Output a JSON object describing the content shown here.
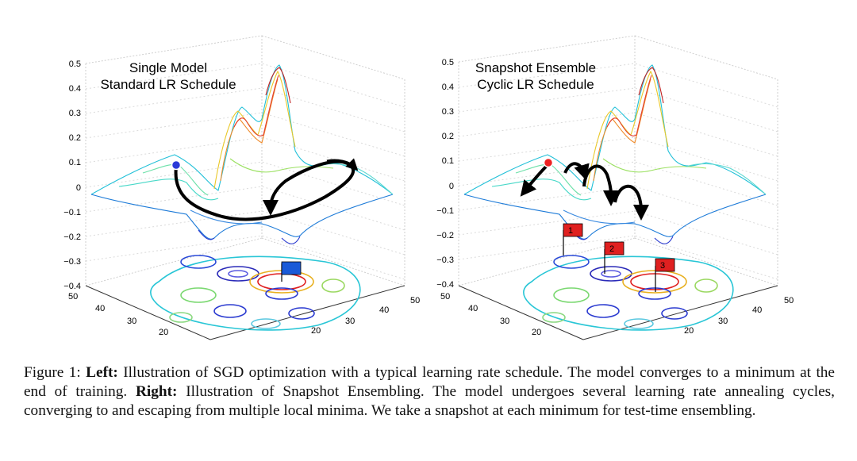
{
  "figure": {
    "panels": [
      {
        "title_line1": "Single Model",
        "title_line2": "Standard LR Schedule",
        "z_ticks": [
          "0.5",
          "0.4",
          "0.3",
          "0.2",
          "0.1",
          "0",
          "−0.1",
          "−0.2",
          "−0.3",
          "−0.4"
        ],
        "y_ticks": [
          "50",
          "40",
          "30",
          "20"
        ],
        "x_ticks": [
          "50",
          "40",
          "30",
          "20"
        ]
      },
      {
        "title_line1": "Snapshot Ensemble",
        "title_line2": "Cyclic LR Schedule",
        "z_ticks": [
          "0.5",
          "0.4",
          "0.3",
          "0.2",
          "0.1",
          "0",
          "−0.1",
          "−0.2",
          "−0.3",
          "−0.4"
        ],
        "y_ticks": [
          "50",
          "40",
          "30",
          "20"
        ],
        "x_ticks": [
          "50",
          "40",
          "30",
          "20"
        ],
        "flags": [
          "1",
          "2",
          "3"
        ]
      }
    ]
  },
  "caption": {
    "label": "Figure 1:",
    "left_label": "Left:",
    "left_text": "Illustration of SGD optimization with a typical learning rate schedule. The model converges to a minimum at the end of training.",
    "right_label": "Right:",
    "right_text": "Illustration of Snapshot Ensembling. The model undergoes several learning rate annealing cycles, converging to and escaping from multiple local minima. We take a snapshot at each minimum for test-time ensembling."
  }
}
